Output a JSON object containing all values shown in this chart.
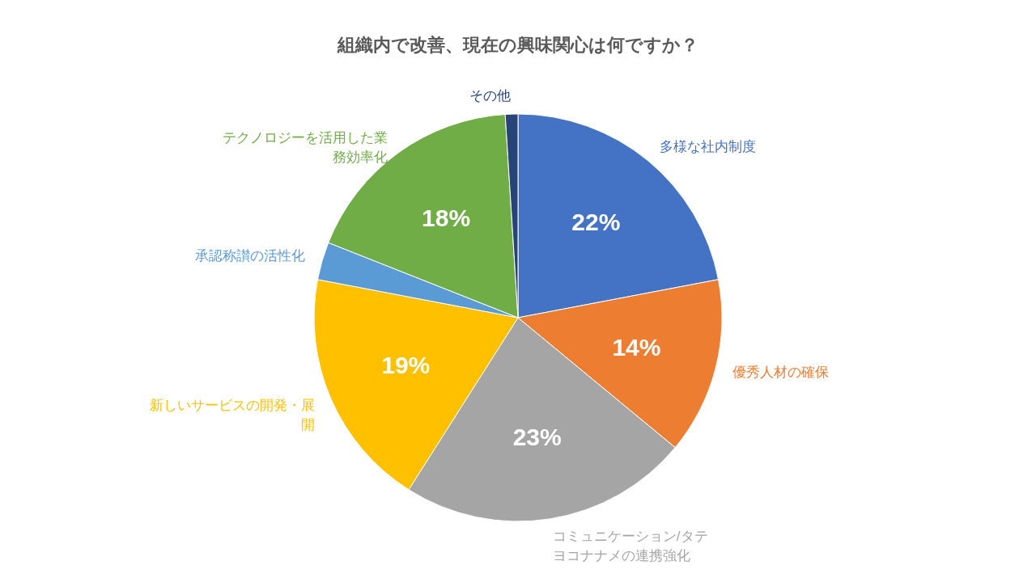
{
  "chart_data": {
    "type": "pie",
    "title": "組織内で改善、現在の興味関心は何ですか？",
    "categories": [
      "多様な社内制度",
      "優秀人材の確保",
      "コミュニケーション/タテヨコナナメの連携強化",
      "新しいサービスの開発・展開",
      "承認称讃の活性化",
      "テクノロジーを活用した業務効率化",
      "その他"
    ],
    "values": [
      22,
      14,
      23,
      19,
      3,
      18,
      1
    ],
    "colors": [
      "#4472c4",
      "#ed7d31",
      "#a5a5a5",
      "#ffc000",
      "#5b9bd5",
      "#70ad47",
      "#264478"
    ],
    "value_labels": [
      "22%",
      "14%",
      "23%",
      "19%",
      null,
      "18%",
      null
    ]
  }
}
